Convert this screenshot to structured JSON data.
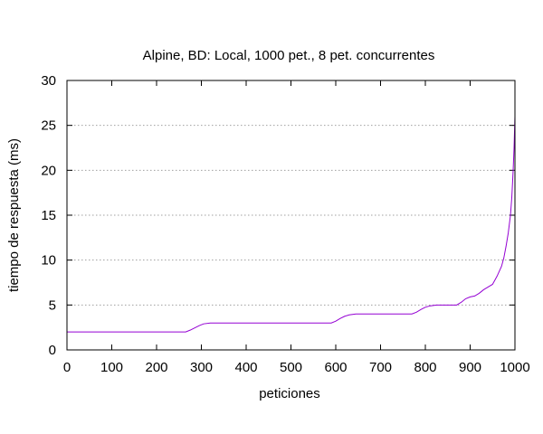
{
  "chart_data": {
    "type": "line",
    "title": "Alpine, BD: Local,  1000 pet., 8 pet. concurrentes",
    "xlabel": "peticiones",
    "ylabel": "tiempo de respuesta (ms)",
    "xlim": [
      0,
      1000
    ],
    "ylim": [
      0,
      30
    ],
    "x_ticks": [
      0,
      100,
      200,
      300,
      400,
      500,
      600,
      700,
      800,
      900,
      1000
    ],
    "x_tick_labels": [
      "0",
      "100",
      "200",
      "300",
      "400",
      "500",
      "600",
      "700",
      "800",
      "900",
      "1000"
    ],
    "y_ticks": [
      0,
      5,
      10,
      15,
      20,
      25,
      30
    ],
    "y_tick_labels": [
      "0",
      "5",
      "10",
      "15",
      "20",
      "25",
      "30"
    ],
    "grid": "horizontal dotted lines at y ticks",
    "series": [
      {
        "color": "#9400d3",
        "x": [
          0,
          265,
          275,
          285,
          295,
          305,
          320,
          340,
          590,
          600,
          610,
          620,
          630,
          645,
          660,
          770,
          780,
          790,
          800,
          810,
          825,
          870,
          880,
          890,
          900,
          910,
          920,
          930,
          940,
          950,
          960,
          970,
          975,
          980,
          985,
          990,
          993,
          996,
          998,
          1000
        ],
        "values": [
          2,
          2,
          2.2,
          2.45,
          2.7,
          2.9,
          3,
          3,
          3,
          3.2,
          3.5,
          3.75,
          3.9,
          4,
          4,
          4,
          4.2,
          4.5,
          4.75,
          4.9,
          5,
          5,
          5.3,
          5.7,
          5.9,
          6.0,
          6.3,
          6.7,
          7.0,
          7.3,
          8.2,
          9.3,
          10.2,
          11.5,
          13.0,
          15.0,
          17.0,
          20.0,
          22.5,
          26.0
        ]
      }
    ]
  }
}
